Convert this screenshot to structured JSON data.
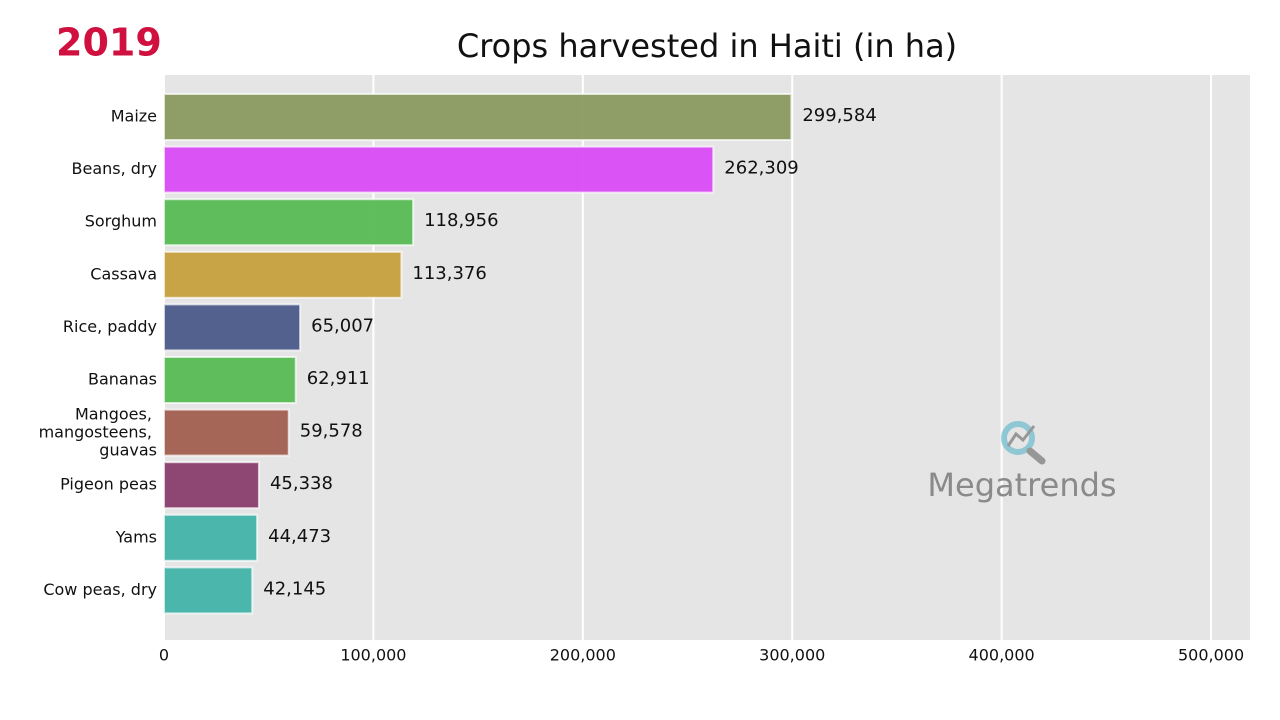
{
  "chart_data": {
    "type": "hbar",
    "title": "Crops harvested in Haiti (in ha)",
    "year": "2019",
    "watermark": "Megatrends",
    "categories": [
      "Maize",
      "Beans, dry",
      "Sorghum",
      "Cassava",
      "Rice, paddy",
      "Bananas",
      "Mangoes, mangosteens, guavas",
      "Pigeon peas",
      "Yams",
      "Cow peas, dry"
    ],
    "values": [
      299584,
      262309,
      118956,
      113376,
      65007,
      62911,
      59578,
      45338,
      44473,
      42145
    ],
    "value_labels": [
      "299,584",
      "262,309",
      "118,956",
      "113,376",
      "65,007",
      "62,911",
      "59,578",
      "45,338",
      "44,473",
      "42,145"
    ],
    "colors": [
      "#8a9960",
      "#d94cf5",
      "#57bb54",
      "#c6a03d",
      "#4a5a88",
      "#57bb54",
      "#a25f4f",
      "#893d6c",
      "#42b3a8",
      "#42b3a8"
    ],
    "xlim": [
      0,
      518600
    ],
    "xticks": [
      0,
      {
        "value": 100000,
        "label": "100,000"
      },
      {
        "value": 200000,
        "label": "200,000"
      },
      {
        "value": 300000,
        "label": "300,000"
      },
      {
        "value": 400000,
        "label": "400,000"
      },
      {
        "value": 500000,
        "label": "500,000"
      }
    ],
    "grid": true
  }
}
